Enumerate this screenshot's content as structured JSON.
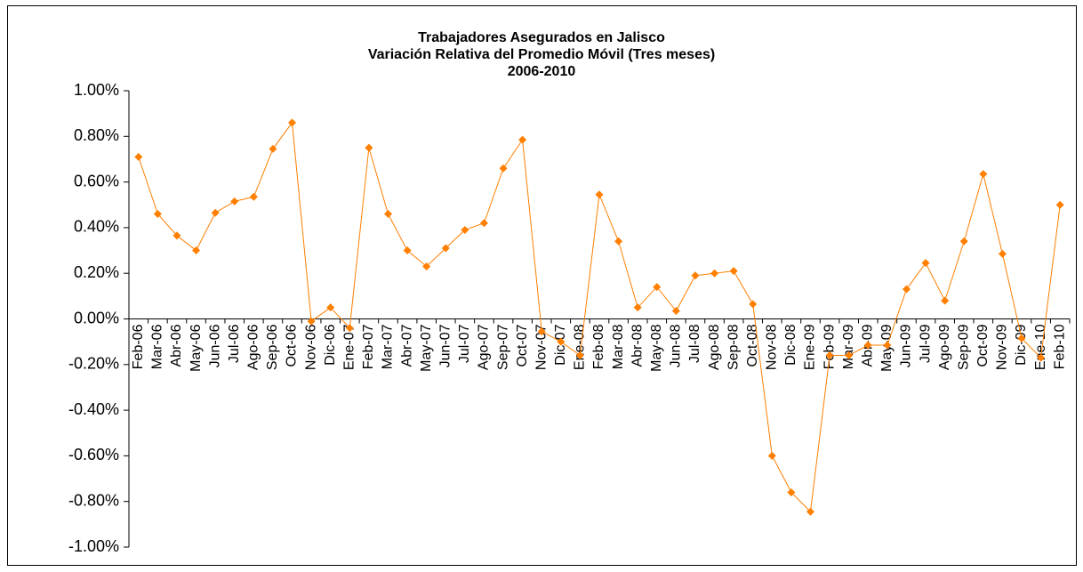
{
  "chart_data": {
    "type": "line",
    "title": "Trabajadores Asegurados en Jalisco",
    "subtitle": [
      "Variación Relativa del Promedio Móvil (Tres meses)",
      "2006-2010"
    ],
    "categories": [
      "Feb-06",
      "Mar-06",
      "Abr-06",
      "May-06",
      "Jun-06",
      "Jul-06",
      "Ago-06",
      "Sep-06",
      "Oct-06",
      "Nov-06",
      "Dic-06",
      "Ene-07",
      "Feb-07",
      "Mar-07",
      "Abr-07",
      "May-07",
      "Jun-07",
      "Jul-07",
      "Ago-07",
      "Sep-07",
      "Oct-07",
      "Nov-07",
      "Dic-07",
      "Ene-08",
      "Feb-08",
      "Mar-08",
      "Abr-08",
      "May-08",
      "Jun-08",
      "Jul-08",
      "Ago-08",
      "Sep-08",
      "Oct-08",
      "Nov-08",
      "Dic-08",
      "Ene-09",
      "Feb-09",
      "Mar-09",
      "Abr-09",
      "May-09",
      "Jun-09",
      "Jul-09",
      "Ago-09",
      "Sep-09",
      "Oct-09",
      "Nov-09",
      "Dic-09",
      "Ene-10",
      "Feb-10"
    ],
    "series": [
      {
        "color": "#ff7f00",
        "values": [
          0.71,
          0.46,
          0.365,
          0.3,
          0.465,
          0.515,
          0.535,
          0.745,
          0.86,
          -0.01,
          0.05,
          -0.04,
          0.75,
          0.46,
          0.3,
          0.23,
          0.31,
          0.39,
          0.42,
          0.66,
          0.785,
          -0.055,
          -0.1,
          -0.16,
          0.545,
          0.34,
          0.05,
          0.14,
          0.035,
          0.19,
          0.2,
          0.21,
          0.065,
          -0.6,
          -0.76,
          -0.845,
          -0.16,
          -0.16,
          -0.115,
          -0.115,
          0.13,
          0.245,
          0.08,
          0.34,
          0.635,
          0.285,
          -0.085,
          -0.17,
          0.5
        ]
      }
    ],
    "ylim": [
      -1,
      1
    ],
    "yticks": [
      {
        "value": 1,
        "label": "1.00%"
      },
      {
        "value": 0.8,
        "label": "0.80%"
      },
      {
        "value": 0.6,
        "label": "0.60%"
      },
      {
        "value": 0.4,
        "label": "0.40%"
      },
      {
        "value": 0.2,
        "label": "0.20%"
      },
      {
        "value": 0,
        "label": "0.00%"
      },
      {
        "value": -0.2,
        "label": "-0.20%"
      },
      {
        "value": -0.4,
        "label": "-0.40%"
      },
      {
        "value": -0.6,
        "label": "-0.60%"
      },
      {
        "value": -0.8,
        "label": "-0.80%"
      },
      {
        "value": -1,
        "label": "-1.00%"
      }
    ],
    "grid": false
  }
}
